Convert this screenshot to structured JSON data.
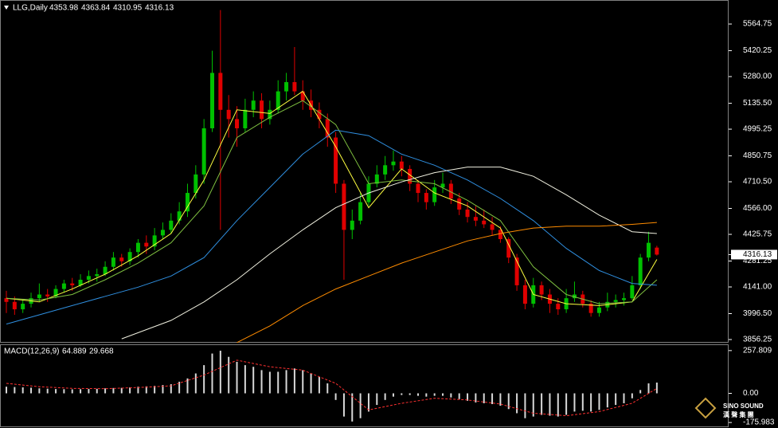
{
  "chart_data": {
    "type": "candlestick",
    "title": "LLG,Daily",
    "last_ohlc": [
      4353.98,
      4363.84,
      4310.95,
      4316.13
    ],
    "up_color": "#00c000",
    "down_color": "#e00000",
    "open": [
      4080,
      4060,
      4020,
      4050,
      4080,
      4100,
      4090,
      4130,
      4160,
      4150,
      4180,
      4200,
      4210,
      4250,
      4300,
      4280,
      4330,
      4380,
      4360,
      4420,
      4450,
      4500,
      4550,
      4650,
      4750,
      5000,
      5300,
      5100,
      5050,
      5000,
      5100,
      5150,
      5050,
      5100,
      5200,
      5250,
      5200,
      5150,
      5100,
      5050,
      4950,
      4700,
      4450,
      4500,
      4600,
      4700,
      4750,
      4800,
      4820,
      4780,
      4700,
      4650,
      4600,
      4680,
      4700,
      4620,
      4560,
      4520,
      4500,
      4480,
      4450,
      4400,
      4300,
      4150,
      4050,
      4150,
      4100,
      4050,
      4020,
      4080,
      4100,
      4050,
      4000,
      4030,
      4060,
      4070,
      4080,
      4150,
      4300,
      4353.98
    ],
    "high": [
      4120,
      4090,
      4070,
      4110,
      4160,
      4130,
      4150,
      4180,
      4190,
      4210,
      4230,
      4240,
      4280,
      4330,
      4320,
      4350,
      4400,
      4420,
      4460,
      4490,
      4540,
      4600,
      4700,
      4800,
      5050,
      5420,
      5640,
      5180,
      5120,
      5160,
      5200,
      5190,
      5150,
      5260,
      5300,
      5440,
      5260,
      5210,
      5140,
      5080,
      4980,
      4720,
      4560,
      4650,
      4740,
      4800,
      4850,
      4880,
      4850,
      4800,
      4720,
      4670,
      4720,
      4760,
      4720,
      4650,
      4600,
      4580,
      4560,
      4520,
      4470,
      4410,
      4320,
      4180,
      4190,
      4170,
      4130,
      4080,
      4130,
      4170,
      4120,
      4070,
      4060,
      4110,
      4100,
      4110,
      4200,
      4320,
      4440,
      4363.84
    ],
    "low": [
      4000,
      3990,
      4000,
      4030,
      4060,
      4060,
      4080,
      4110,
      4120,
      4140,
      4160,
      4170,
      4200,
      4230,
      4250,
      4260,
      4300,
      4320,
      4340,
      4400,
      4430,
      4480,
      4520,
      4620,
      4700,
      4980,
      4450,
      4950,
      4900,
      4980,
      5060,
      5000,
      5020,
      5080,
      5150,
      5180,
      5100,
      5060,
      5000,
      4900,
      4650,
      4180,
      4400,
      4480,
      4580,
      4680,
      4720,
      4770,
      4740,
      4660,
      4600,
      4560,
      4580,
      4650,
      4590,
      4530,
      4490,
      4470,
      4460,
      4420,
      4380,
      4270,
      4120,
      4020,
      4030,
      4070,
      4000,
      3990,
      4000,
      4060,
      4030,
      3980,
      3980,
      4010,
      4030,
      4040,
      4070,
      4130,
      4280,
      4310.95
    ],
    "close": [
      4060,
      4020,
      4050,
      4080,
      4100,
      4090,
      4130,
      4160,
      4150,
      4180,
      4200,
      4210,
      4250,
      4300,
      4280,
      4330,
      4380,
      4360,
      4420,
      4450,
      4500,
      4550,
      4650,
      4750,
      5000,
      5300,
      5100,
      5050,
      5000,
      5100,
      5150,
      5050,
      5100,
      5200,
      5250,
      5200,
      5150,
      5100,
      5050,
      4950,
      4700,
      4450,
      4500,
      4600,
      4700,
      4750,
      4800,
      4820,
      4780,
      4700,
      4650,
      4600,
      4680,
      4700,
      4620,
      4560,
      4520,
      4500,
      4480,
      4450,
      4400,
      4300,
      4150,
      4050,
      4150,
      4100,
      4050,
      4020,
      4080,
      4100,
      4050,
      4000,
      4030,
      4060,
      4070,
      4080,
      4150,
      4300,
      4380,
      4316.13
    ],
    "series": [
      {
        "color": "#ffff40",
        "x": [
          0,
          4,
          8,
          12,
          16,
          20,
          24,
          28,
          32,
          36,
          40,
          44,
          48,
          52,
          56,
          60,
          64,
          68,
          72,
          76,
          79
        ],
        "values": [
          4080,
          4060,
          4130,
          4210,
          4310,
          4430,
          4720,
          5100,
          5080,
          5200,
          4900,
          4570,
          4780,
          4650,
          4580,
          4460,
          4100,
          4050,
          4040,
          4060,
          4290
        ]
      },
      {
        "color": "#7fc040",
        "x": [
          0,
          4,
          8,
          12,
          16,
          20,
          24,
          28,
          32,
          36,
          40,
          44,
          48,
          52,
          56,
          60,
          64,
          68,
          72,
          76,
          79
        ],
        "values": [
          4080,
          4070,
          4100,
          4180,
          4270,
          4380,
          4580,
          4950,
          5060,
          5150,
          5020,
          4700,
          4720,
          4700,
          4610,
          4500,
          4250,
          4100,
          4050,
          4060,
          4180
        ]
      },
      {
        "color": "#2f8fe0",
        "x": [
          0,
          4,
          8,
          12,
          16,
          20,
          24,
          28,
          32,
          36,
          40,
          44,
          48,
          52,
          56,
          60,
          64,
          68,
          72,
          76,
          79
        ],
        "values": [
          3940,
          3990,
          4040,
          4090,
          4140,
          4200,
          4300,
          4500,
          4680,
          4860,
          4990,
          4960,
          4860,
          4800,
          4720,
          4620,
          4500,
          4350,
          4230,
          4160,
          4150
        ]
      },
      {
        "color": "#f0f0e0",
        "x": [
          14,
          20,
          24,
          28,
          32,
          36,
          40,
          44,
          48,
          52,
          56,
          60,
          64,
          68,
          72,
          76,
          79
        ],
        "values": [
          3860,
          3960,
          4060,
          4180,
          4320,
          4450,
          4570,
          4650,
          4710,
          4760,
          4790,
          4790,
          4740,
          4640,
          4530,
          4440,
          4430
        ]
      },
      {
        "color": "#ff8c00",
        "x": [
          28,
          32,
          36,
          40,
          44,
          48,
          52,
          56,
          60,
          64,
          68,
          72,
          76,
          79
        ],
        "values": [
          3840,
          3930,
          4040,
          4130,
          4200,
          4270,
          4330,
          4390,
          4430,
          4460,
          4470,
          4470,
          4480,
          4490
        ]
      }
    ],
    "ylim": [
      3839,
      5686
    ],
    "yticks": [
      {
        "value": 3856.25,
        "label": "3856.25"
      },
      {
        "value": 3996.5,
        "label": "3996.50"
      },
      {
        "value": 4141,
        "label": "4141.00"
      },
      {
        "value": 4281.25,
        "label": "4281.25"
      },
      {
        "value": 4425.75,
        "label": "4425.75"
      },
      {
        "value": 4566,
        "label": "4566.00"
      },
      {
        "value": 4710.5,
        "label": "4710.50"
      },
      {
        "value": 4850.75,
        "label": "4850.75"
      },
      {
        "value": 4995.25,
        "label": "4995.25"
      },
      {
        "value": 5135.5,
        "label": "5135.50"
      },
      {
        "value": 5280,
        "label": "5280.00"
      },
      {
        "value": 5420.25,
        "label": "5420.25"
      },
      {
        "value": 5564.75,
        "label": "5564.75"
      }
    ],
    "macd": {
      "label": "MACD(12,26,9)",
      "values": [
        64.889,
        29.668
      ],
      "bar_color": "#d8d8d8",
      "histogram": [
        40,
        38,
        36,
        34,
        30,
        28,
        26,
        25,
        24,
        25,
        26,
        27,
        30,
        32,
        33,
        36,
        40,
        42,
        45,
        50,
        55,
        70,
        90,
        120,
        170,
        240,
        257,
        220,
        190,
        170,
        160,
        140,
        130,
        130,
        140,
        150,
        140,
        120,
        100,
        60,
        -40,
        -140,
        -170,
        -150,
        -110,
        -70,
        -40,
        -20,
        -10,
        -10,
        -15,
        -20,
        -15,
        -15,
        -25,
        -35,
        -45,
        -55,
        -60,
        -65,
        -75,
        -95,
        -120,
        -150,
        -140,
        -130,
        -135,
        -140,
        -130,
        -110,
        -105,
        -110,
        -100,
        -85,
        -70,
        -60,
        -30,
        20,
        60,
        64.889
      ],
      "signal": {
        "color": "#ff3030",
        "x": [
          0,
          4,
          8,
          12,
          16,
          20,
          24,
          28,
          32,
          36,
          40,
          44,
          48,
          52,
          56,
          60,
          64,
          68,
          72,
          76,
          79
        ],
        "values": [
          60,
          40,
          30,
          28,
          35,
          45,
          110,
          200,
          160,
          140,
          60,
          -100,
          -60,
          -30,
          -40,
          -65,
          -120,
          -135,
          -110,
          -60,
          29.668
        ]
      },
      "ylim": [
        -199.5,
        286
      ],
      "yticks": [
        257.809,
        {
          "value": 0,
          "label": "0.00"
        },
        -175.983
      ]
    },
    "logo": {
      "name": "SINO SOUND",
      "chinese": "漢 聲 集 團"
    }
  }
}
